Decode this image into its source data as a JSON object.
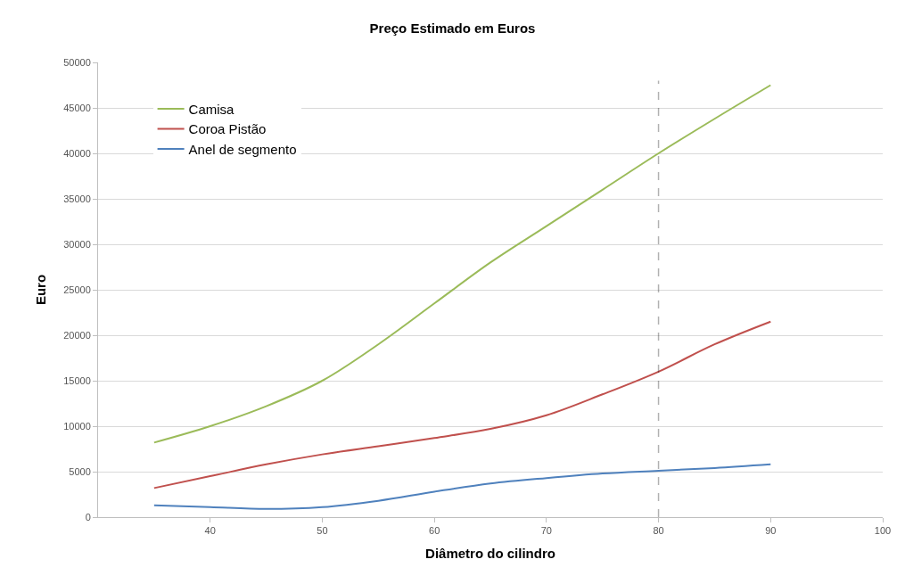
{
  "chart_data": {
    "type": "line",
    "title": "Preço Estimado em Euros",
    "xlabel": "Diâmetro do cilindro",
    "ylabel": "Euro",
    "x": [
      35,
      40,
      45,
      50,
      55,
      60,
      65,
      70,
      75,
      80,
      85,
      90
    ],
    "series": [
      {
        "name": "Camisa",
        "color": "#9bbb59",
        "values": [
          8200,
          10000,
          12200,
          15000,
          19000,
          23500,
          28000,
          32000,
          36000,
          40000,
          43800,
          47500
        ]
      },
      {
        "name": "Coroa Pistão",
        "color": "#c0504d",
        "values": [
          3200,
          4500,
          5800,
          6900,
          7800,
          8700,
          9700,
          11200,
          13500,
          16000,
          19000,
          21500
        ]
      },
      {
        "name": "Anel de segmento",
        "color": "#4f81bd",
        "values": [
          1300,
          1100,
          900,
          1100,
          1800,
          2800,
          3700,
          4300,
          4800,
          5100,
          5400,
          5800
        ]
      }
    ],
    "xlim": [
      30,
      100
    ],
    "xticks": [
      40,
      50,
      60,
      70,
      80,
      90,
      100
    ],
    "ylim": [
      0,
      50000
    ],
    "yticks": [
      0,
      5000,
      10000,
      15000,
      20000,
      25000,
      30000,
      35000,
      40000,
      45000,
      50000
    ],
    "ref_lines": [
      {
        "axis": "x",
        "value": 80,
        "color": "#000000",
        "line_style": "dashed"
      }
    ],
    "grid": "y",
    "legend": "top left",
    "marker": "none",
    "line_style": "solid"
  }
}
